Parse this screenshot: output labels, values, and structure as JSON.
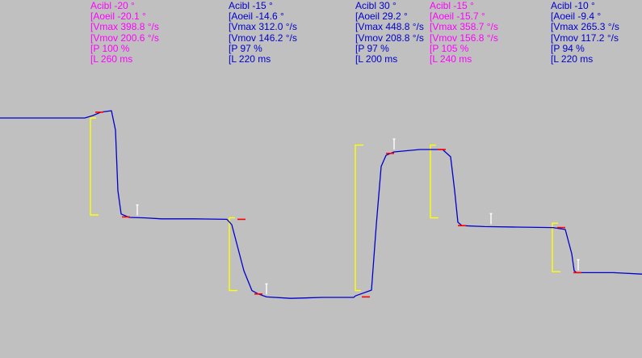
{
  "colors": {
    "background": "#c0c0c0",
    "trace": "#0000cc",
    "target": "#ffff00",
    "latency_mark": "#ff0000",
    "peak_mark": "#ffffff",
    "label_magenta": "#ff00ff",
    "label_blue": "#0000cc"
  },
  "saccades": [
    {
      "color": "magenta",
      "acibl": "Acibl -20 °",
      "aoeil": "[Aoeil -20.1 °",
      "vmax": "[Vmax 398.8 °/s",
      "vmov": "[Vmov 200.6 °/s",
      "p": "[P 100 %",
      "l": "[L 260 ms"
    },
    {
      "color": "blue",
      "acibl": "Acibl -15 °",
      "aoeil": "[Aoeil -14.6 °",
      "vmax": "[Vmax 312.0 °/s",
      "vmov": "[Vmov 146.2 °/s",
      "p": "[P 97 %",
      "l": "[L 220 ms"
    },
    {
      "color": "blue",
      "acibl": "Acibl 30 °",
      "aoeil": "[Aoeil 29.2 °",
      "vmax": "[Vmax 448.8 °/s",
      "vmov": "[Vmov 208.8 °/s",
      "p": "[P 97 %",
      "l": "[L 200 ms"
    },
    {
      "color": "magenta",
      "acibl": "Acibl -15 °",
      "aoeil": "[Aoeil -15.7 °",
      "vmax": "[Vmax 358.7 °/s",
      "vmov": "[Vmov 156.8 °/s",
      "p": "[P 105 %",
      "l": "[L 240 ms"
    },
    {
      "color": "blue",
      "acibl": "Acibl -10 °",
      "aoeil": "[Aoeil -9.4 °",
      "vmax": "[Vmax 265.3 °/s",
      "vmov": "[Vmov 117.2 °/s",
      "p": "[P 94 %",
      "l": "[L 220 ms"
    }
  ],
  "chart_data": {
    "type": "line",
    "title": "",
    "xlabel": "",
    "ylabel": "",
    "grid": false,
    "legend": "none",
    "series": [
      {
        "x": [
          0,
          40,
          80,
          105,
          115,
          125,
          138,
          143,
          146,
          150,
          160,
          180,
          200,
          240,
          281,
          287,
          302,
          312,
          320,
          330,
          360,
          400,
          438,
          440,
          460,
          466,
          472,
          478,
          488,
          520,
          532,
          548,
          558,
          563,
          567,
          572,
          600,
          640,
          685,
          700,
          708,
          711,
          714,
          720,
          760,
          795
        ],
        "y": [
          0,
          0,
          0,
          0,
          -0.5,
          -1.2,
          -1.5,
          2.5,
          15,
          19.8,
          20.5,
          20.6,
          20.8,
          20.8,
          20.9,
          22,
          31.5,
          35.6,
          36.3,
          36.9,
          37.2,
          37,
          37,
          36.7,
          35.5,
          22,
          10,
          7.7,
          7,
          6.5,
          6.5,
          6.5,
          8,
          15,
          21.5,
          22.2,
          22.4,
          22.5,
          22.6,
          23,
          28,
          31.5,
          31.9,
          31.9,
          31.9,
          32.2
        ]
      }
    ],
    "targets": [
      {
        "x": 112,
        "from": 0,
        "to": 20
      },
      {
        "x": 284,
        "from": 20.6,
        "to": 35.6
      },
      {
        "x": 440,
        "from": 35.6,
        "to": 5.6
      },
      {
        "x": 533,
        "from": 5.6,
        "to": 20.6
      },
      {
        "x": 684,
        "from": 21.7,
        "to": 31.7
      }
    ],
    "latency_marks": [
      {
        "x": 123,
        "y": -1.2
      },
      {
        "x": 156,
        "y": 20.4
      },
      {
        "x": 299,
        "y": 20.9
      },
      {
        "x": 320,
        "y": 36.3
      },
      {
        "x": 453,
        "y": 36.9
      },
      {
        "x": 483,
        "y": 7.3
      },
      {
        "x": 547,
        "y": 6.5
      },
      {
        "x": 572,
        "y": 22.2
      },
      {
        "x": 695,
        "y": 22.6
      },
      {
        "x": 715,
        "y": 31.9
      }
    ],
    "peak_marks": [
      {
        "x": 170,
        "y": 20.6
      },
      {
        "x": 330,
        "y": 36.9
      },
      {
        "x": 488,
        "y": 7
      },
      {
        "x": 608,
        "y": 22.4
      },
      {
        "x": 716,
        "y": 31.9
      }
    ]
  }
}
